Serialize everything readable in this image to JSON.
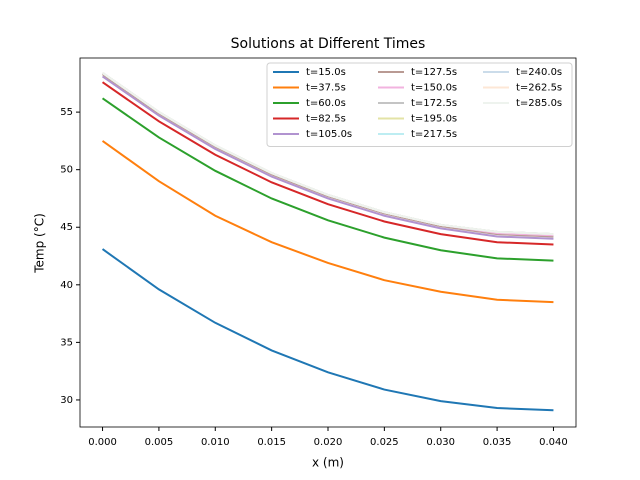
{
  "chart_data": {
    "type": "line",
    "title": "Solutions at Different Times",
    "xlabel": "x (m)",
    "ylabel": "Temp (°C)",
    "x": [
      0,
      0.005,
      0.01,
      0.015,
      0.02,
      0.025,
      0.03,
      0.035,
      0.04
    ],
    "xlim": [
      -0.002,
      0.042
    ],
    "xticks": [
      {
        "value": 0,
        "label": "0.000"
      },
      {
        "value": 0.005,
        "label": "0.005"
      },
      {
        "value": 0.01,
        "label": "0.010"
      },
      {
        "value": 0.015,
        "label": "0.015"
      },
      {
        "value": 0.02,
        "label": "0.020"
      },
      {
        "value": 0.025,
        "label": "0.025"
      },
      {
        "value": 0.03,
        "label": "0.030"
      },
      {
        "value": 0.035,
        "label": "0.035"
      },
      {
        "value": 0.04,
        "label": "0.040"
      }
    ],
    "ylim": [
      27.65,
      59.7
    ],
    "yticks": [
      30,
      35,
      40,
      45,
      50,
      55
    ],
    "legend": "upper right",
    "legend_columns": 3,
    "series": [
      {
        "name": "t=15.0s",
        "color": "#1f77b4",
        "values": [
          43.1,
          39.6,
          36.7,
          34.3,
          32.4,
          30.9,
          29.9,
          29.3,
          29.1
        ]
      },
      {
        "name": "t=37.5s",
        "color": "#ff7f0e",
        "values": [
          52.5,
          49.0,
          46.0,
          43.7,
          41.9,
          40.4,
          39.4,
          38.7,
          38.5
        ]
      },
      {
        "name": "t=60.0s",
        "color": "#2ca02c",
        "values": [
          56.2,
          52.8,
          49.9,
          47.5,
          45.6,
          44.1,
          43.0,
          42.3,
          42.1
        ]
      },
      {
        "name": "t=82.5s",
        "color": "#d62728",
        "values": [
          57.6,
          54.2,
          51.3,
          48.9,
          47.0,
          45.5,
          44.4,
          43.7,
          43.5
        ]
      },
      {
        "name": "t=105.0s",
        "color": "#b193d0",
        "values": [
          58.1,
          54.7,
          51.8,
          49.4,
          47.5,
          46.0,
          44.9,
          44.2,
          44.0
        ]
      },
      {
        "name": "t=127.5s",
        "color": "#b99a93",
        "values": [
          58.3,
          54.9,
          52.0,
          49.6,
          47.7,
          46.2,
          45.1,
          44.4,
          44.2
        ]
      },
      {
        "name": "t=150.0s",
        "color": "#f2b3df",
        "values": [
          58.4,
          55.0,
          52.1,
          49.7,
          47.8,
          46.3,
          45.2,
          44.5,
          44.3
        ]
      },
      {
        "name": "t=172.5s",
        "color": "#c4c4c4",
        "values": [
          58.4,
          55.0,
          52.1,
          49.7,
          47.8,
          46.3,
          45.2,
          44.6,
          44.4
        ]
      },
      {
        "name": "t=195.0s",
        "color": "#e3e3a6",
        "values": [
          58.4,
          55.0,
          52.1,
          49.7,
          47.8,
          46.3,
          45.2,
          44.6,
          44.4
        ]
      },
      {
        "name": "t=217.5s",
        "color": "#bdedf2",
        "values": [
          58.4,
          55.0,
          52.1,
          49.7,
          47.8,
          46.3,
          45.2,
          44.6,
          44.4
        ]
      },
      {
        "name": "t=240.0s",
        "color": "#cbdcea",
        "values": [
          58.4,
          55.0,
          52.1,
          49.7,
          47.8,
          46.3,
          45.2,
          44.6,
          44.4
        ]
      },
      {
        "name": "t=262.5s",
        "color": "#fde7d6",
        "values": [
          58.4,
          55.0,
          52.1,
          49.7,
          47.8,
          46.3,
          45.2,
          44.6,
          44.4
        ]
      },
      {
        "name": "t=285.0s",
        "color": "#eef3ee",
        "values": [
          58.4,
          55.0,
          52.1,
          49.7,
          47.8,
          46.3,
          45.2,
          44.6,
          44.4
        ]
      }
    ]
  }
}
